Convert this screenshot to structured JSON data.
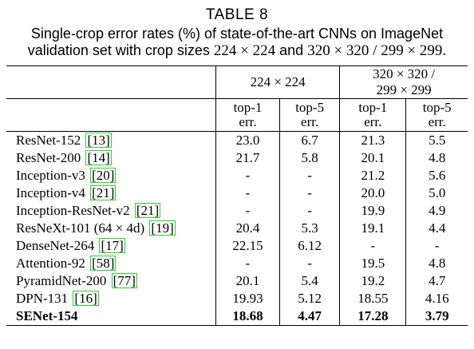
{
  "caption": {
    "number": "TABLE 8",
    "line1": "Single-crop error rates (%) of state-of-the-art CNNs on ImageNet",
    "line2_prefix": "validation set with crop sizes",
    "size_a": "224 × 224",
    "and": "and",
    "size_b": "320 × 320 / 299 × 299."
  },
  "table": {
    "group_headers": [
      "224 × 224",
      "320 × 320 /",
      "299 × 299"
    ],
    "sub_headers": [
      {
        "line1": "top-1",
        "line2": "err."
      },
      {
        "line1": "top-5",
        "line2": "err."
      },
      {
        "line1": "top-1",
        "line2": "err."
      },
      {
        "line1": "top-5",
        "line2": "err."
      }
    ],
    "rows": [
      {
        "name": "ResNet-152",
        "cite": "[13]",
        "values": [
          "23.0",
          "6.7",
          "21.3",
          "5.5"
        ]
      },
      {
        "name": "ResNet-200",
        "cite": "[14]",
        "values": [
          "21.7",
          "5.8",
          "20.1",
          "4.8"
        ]
      },
      {
        "name": "Inception-v3",
        "cite": "[20]",
        "values": [
          "-",
          "-",
          "21.2",
          "5.6"
        ]
      },
      {
        "name": "Inception-v4",
        "cite": "[21]",
        "values": [
          "-",
          "-",
          "20.0",
          "5.0"
        ]
      },
      {
        "name": "Inception-ResNet-v2",
        "cite": "[21]",
        "values": [
          "-",
          "-",
          "19.9",
          "4.9"
        ]
      },
      {
        "name": "ResNeXt-101 (64 × 4d)",
        "cite": "[19]",
        "values": [
          "20.4",
          "5.3",
          "19.1",
          "4.4"
        ]
      },
      {
        "name": "DenseNet-264",
        "cite": "[17]",
        "values": [
          "22.15",
          "6.12",
          "-",
          "-"
        ]
      },
      {
        "name": "Attention-92",
        "cite": "[58]",
        "values": [
          "-",
          "-",
          "19.5",
          "4.8"
        ]
      },
      {
        "name": "PyramidNet-200",
        "cite": "[77]",
        "values": [
          "20.1",
          "5.4",
          "19.2",
          "4.7"
        ]
      },
      {
        "name": "DPN-131",
        "cite": "[16]",
        "values": [
          "19.93",
          "5.12",
          "18.55",
          "4.16"
        ]
      },
      {
        "name": "SENet-154",
        "cite": "",
        "values": [
          "18.68",
          "4.47",
          "17.28",
          "3.79"
        ]
      }
    ]
  },
  "colors": {
    "citation_box": "#2fd02f"
  }
}
